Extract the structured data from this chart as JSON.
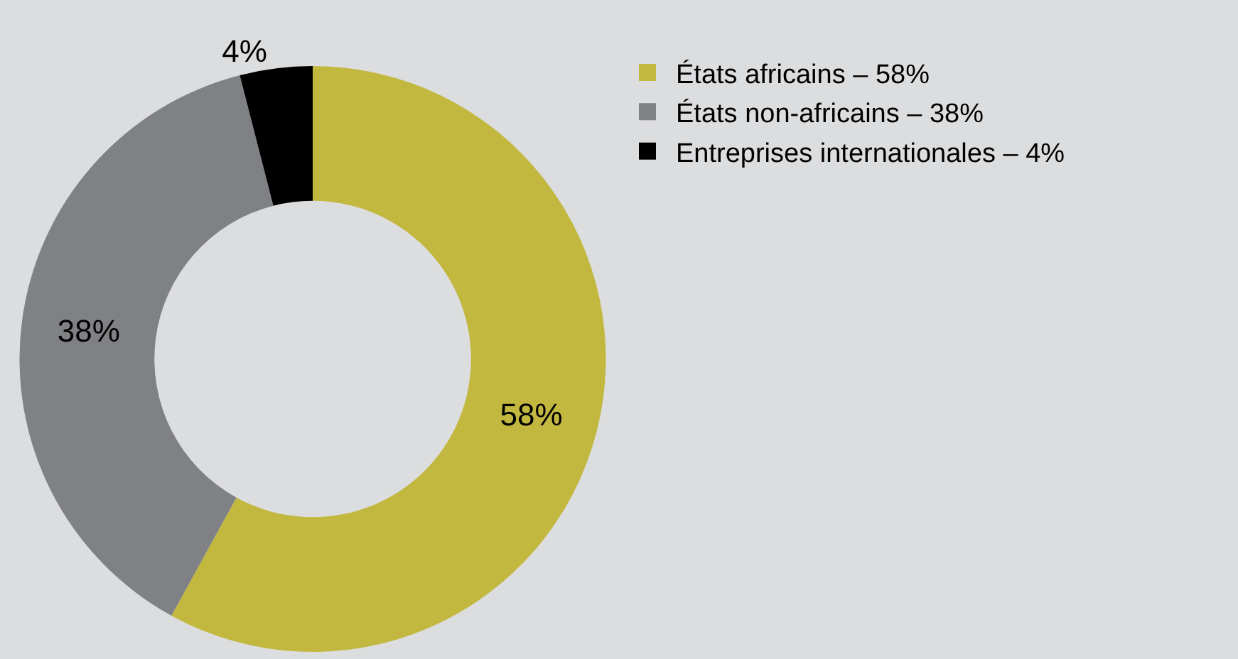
{
  "chart_data": {
    "type": "donut",
    "categories": [
      "États africains – 58%",
      "États non-africains – 38%",
      "Entreprises internationales – 4%"
    ],
    "values": [
      58,
      38,
      4
    ],
    "colors": [
      "#c2b840",
      "#808184",
      "#000000"
    ],
    "value_labels": [
      "58%",
      "38%",
      "4%"
    ],
    "legend": "top right"
  }
}
